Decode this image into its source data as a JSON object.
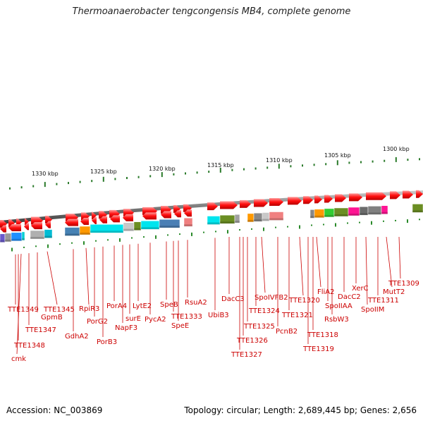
{
  "title": "Thermoanaerobacter tengcongensis MB4, complete genome",
  "footer": {
    "accession": "Accession: NC_003869",
    "info": "Topology: circular; Length: 2,689,445 bp; Genes: 2,656"
  },
  "scale_labels": [
    "1330 kbp",
    "1325 kbp",
    "1320 kbp",
    "1315 kbp",
    "1310 kbp",
    "1305 kbp",
    "1300 kbp"
  ],
  "gene_labels": [
    "TTE1349",
    "TTE1348",
    "cmk",
    "TTE1347",
    "GpmB",
    "TTE1345",
    "GdhA2",
    "RpiR3",
    "PorG2",
    "PorB3",
    "PorA4",
    "NapF3",
    "surE",
    "LytE2",
    "PycA2",
    "SpeB",
    "TTE1333",
    "SpeE",
    "RsuA2",
    "UbiB3",
    "DacC3",
    "TTE1327",
    "TTE1326",
    "TTE1325",
    "TTE1324",
    "SpoIVFB2",
    "PcnB2",
    "TTE1321",
    "TTE1320",
    "TTE1319",
    "TTE1318",
    "FliA2",
    "SpoIIAA",
    "RsbW3",
    "DacC2",
    "XerC",
    "SpoIIM",
    "TTE1311",
    "MutT2",
    "TTE1309"
  ],
  "colors": {
    "forward_gene": "#ff0000",
    "label": "#cc0000",
    "tick": "#2a7a2a",
    "backbone": "#808080"
  }
}
